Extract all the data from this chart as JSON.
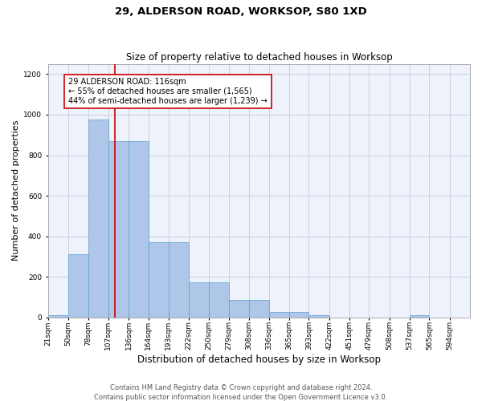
{
  "title_line1": "29, ALDERSON ROAD, WORKSOP, S80 1XD",
  "title_line2": "Size of property relative to detached houses in Worksop",
  "xlabel": "Distribution of detached houses by size in Worksop",
  "ylabel": "Number of detached properties",
  "footer_line1": "Contains HM Land Registry data © Crown copyright and database right 2024.",
  "footer_line2": "Contains public sector information licensed under the Open Government Licence v3.0.",
  "bin_labels": [
    "21sqm",
    "50sqm",
    "78sqm",
    "107sqm",
    "136sqm",
    "164sqm",
    "193sqm",
    "222sqm",
    "250sqm",
    "279sqm",
    "308sqm",
    "336sqm",
    "365sqm",
    "393sqm",
    "422sqm",
    "451sqm",
    "479sqm",
    "508sqm",
    "537sqm",
    "565sqm",
    "594sqm"
  ],
  "bar_values": [
    13,
    310,
    975,
    870,
    870,
    370,
    370,
    175,
    175,
    85,
    85,
    26,
    26,
    10,
    0,
    0,
    0,
    0,
    13,
    0,
    0
  ],
  "bin_edges": [
    21,
    50,
    78,
    107,
    136,
    164,
    193,
    222,
    250,
    279,
    308,
    336,
    365,
    393,
    422,
    451,
    479,
    508,
    537,
    565,
    594
  ],
  "bar_color": "#aec6e8",
  "bar_edge_color": "#5a9fd4",
  "vline_x": 116,
  "vline_color": "#cc0000",
  "annotation_text": "29 ALDERSON ROAD: 116sqm\n← 55% of detached houses are smaller (1,565)\n44% of semi-detached houses are larger (1,239) →",
  "annotation_box_color": "#cc0000",
  "ylim": [
    0,
    1250
  ],
  "yticks": [
    0,
    200,
    400,
    600,
    800,
    1000,
    1200
  ],
  "background_color": "#eef2fb",
  "grid_color": "#c8cfe0",
  "title_fontsize": 9.5,
  "subtitle_fontsize": 8.5,
  "axis_label_fontsize": 8,
  "tick_fontsize": 6.5,
  "footer_fontsize": 6,
  "annot_fontsize": 7
}
